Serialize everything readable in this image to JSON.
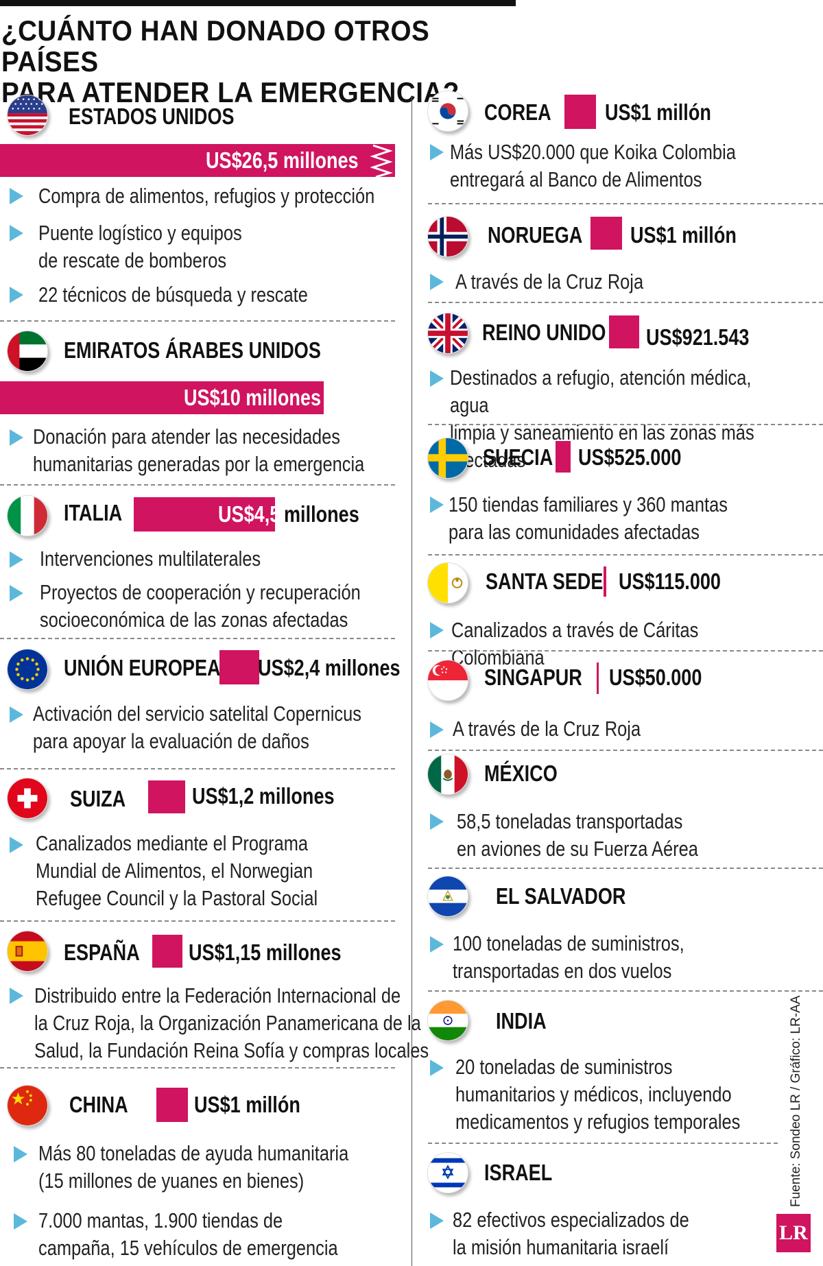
{
  "title": "¿CUÁNTO HAN DONADO OTROS PAÍSES\nPARA ATENDER LA EMERGENCIA?",
  "source": "Fuente: Sondeo LR / Gráfico: LR-AA",
  "logo": "LR",
  "colors": {
    "accent": "#d0145f",
    "bullet": "#5cb8db"
  },
  "left_column": [
    {
      "country": "ESTADOS UNIDOS",
      "flag": "usa-flag",
      "amount": "US$26,5 millones",
      "bullets": [
        "Compra de alimentos, refugios y protección",
        "Puente logístico y equipos\nde rescate de bomberos",
        "22 técnicos de búsqueda y rescate"
      ]
    },
    {
      "country": "EMIRATOS ÁRABES UNIDOS",
      "flag": "uae-flag",
      "amount": "US$10 millones",
      "bullets": [
        "Donación para atender las necesidades\nhumanitarias generadas por la emergencia"
      ]
    },
    {
      "country": "ITALIA",
      "flag": "italy-flag",
      "amount_a": "US$4,5",
      "amount_b": "millones",
      "bullets": [
        "Intervenciones multilaterales",
        "Proyectos de cooperación y recuperación\nsocioeconómica de las zonas afectadas"
      ]
    },
    {
      "country": "UNIÓN EUROPEA",
      "flag": "eu-flag",
      "amount": "US$2,4 millones",
      "bullets": [
        "Activación del servicio satelital Copernicus\npara apoyar la evaluación de daños"
      ]
    },
    {
      "country": "SUIZA",
      "flag": "switzerland-flag",
      "amount": "US$1,2 millones",
      "bullets": [
        "Canalizados mediante el Programa\nMundial de Alimentos, el Norwegian\nRefugee Council y la Pastoral Social"
      ]
    },
    {
      "country": "ESPAÑA",
      "flag": "spain-flag",
      "amount": "US$1,15 millones",
      "bullets": [
        "Distribuido entre la Federación Internacional de\nla Cruz Roja, la Organización Panamericana de la\nSalud, la Fundación Reina Sofía y compras locales"
      ]
    },
    {
      "country": "CHINA",
      "flag": "china-flag",
      "amount": "US$1 millón",
      "bullets": [
        "Más 80 toneladas de ayuda humanitaria\n(15 millones de yuanes en bienes)",
        "7.000 mantas, 1.900 tiendas de\ncampaña, 15 vehículos de emergencia"
      ]
    }
  ],
  "right_column": [
    {
      "country": "COREA",
      "flag": "korea-flag",
      "amount": "US$1 millón",
      "bullets": [
        "Más US$20.000 que Koika Colombia\nentregará al Banco de Alimentos"
      ]
    },
    {
      "country": "NORUEGA",
      "flag": "norway-flag",
      "amount": "US$1 millón",
      "bullets": [
        "A través de la Cruz Roja"
      ]
    },
    {
      "country": "REINO UNIDO",
      "flag": "uk-flag",
      "amount": "US$921.543",
      "bullets": [
        "Destinados a refugio, atención médica, agua\nlimpia y saneamiento en las zonas más afectadas"
      ]
    },
    {
      "country": "SUECIA",
      "flag": "sweden-flag",
      "amount": "US$525.000",
      "bullets": [
        "150 tiendas familiares y 360 mantas\npara las comunidades afectadas"
      ]
    },
    {
      "country": "SANTA SEDE",
      "flag": "holy-see-flag",
      "amount": "US$115.000",
      "bullets": [
        "Canalizados a través de Cáritas Colombiana"
      ]
    },
    {
      "country": "SINGAPUR",
      "flag": "singapore-flag",
      "amount": "US$50.000",
      "bullets": [
        "A través de la Cruz Roja"
      ]
    },
    {
      "country": "MÉXICO",
      "flag": "mexico-flag",
      "bullets": [
        "58,5 toneladas transportadas\nen aviones de su Fuerza Aérea"
      ]
    },
    {
      "country": "EL SALVADOR",
      "flag": "el-salvador-flag",
      "bullets": [
        "100 toneladas de suministros,\ntransportadas en dos vuelos"
      ]
    },
    {
      "country": "INDIA",
      "flag": "india-flag",
      "bullets": [
        "20 toneladas de suministros\nhumanitarios y médicos, incluyendo\nmedicamentos y refugios temporales"
      ]
    },
    {
      "country": "ISRAEL",
      "flag": "israel-flag",
      "bullets": [
        "82 efectivos especializados de\nla misión humanitaria israelí"
      ]
    }
  ],
  "chart_data": {
    "type": "bar",
    "title": "¿CUÁNTO HAN DONADO OTROS PAÍSES PARA ATENDER LA EMERGENCIA?",
    "unit": "US$",
    "categories": [
      "ESTADOS UNIDOS",
      "EMIRATOS ÁRABES UNIDOS",
      "ITALIA",
      "UNIÓN EUROPEA",
      "SUIZA",
      "ESPAÑA",
      "CHINA",
      "COREA",
      "NORUEGA",
      "REINO UNIDO",
      "SUECIA",
      "SANTA SEDE",
      "SINGAPUR"
    ],
    "values": [
      26500000,
      10000000,
      4500000,
      2400000,
      1200000,
      1150000,
      1000000,
      1000000,
      1000000,
      921543,
      525000,
      115000,
      50000
    ]
  }
}
